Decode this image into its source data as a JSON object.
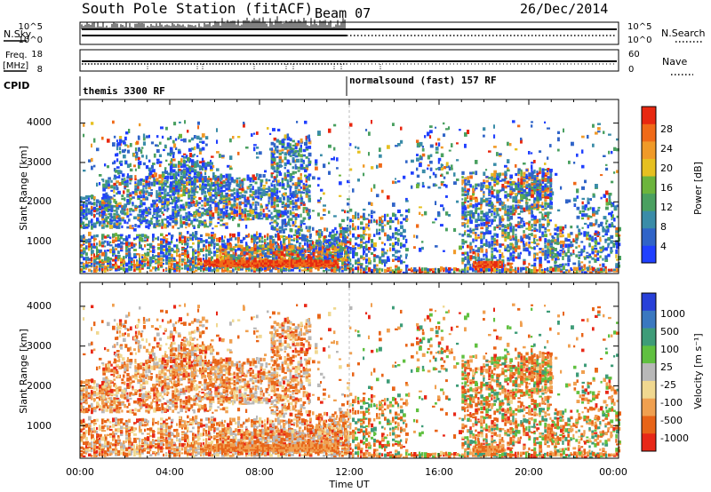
{
  "header": {
    "station": "South Pole Station (fitACF)",
    "beam": "Beam 07",
    "date": "26/Dec/2014"
  },
  "status": {
    "nsky_label": "N.Sky",
    "nsearch_label": "N.Search",
    "freq_label": "Freq.",
    "freq_unit": "[MHz]",
    "nave_label": "Nave",
    "cpid_label": "CPID",
    "nsky_ticks": [
      "10^5",
      "10^0"
    ],
    "nsearch_ticks": [
      "10^5",
      "10^0"
    ],
    "freq_ticks": [
      "18",
      "8"
    ],
    "nave_ticks": [
      "60",
      "0"
    ],
    "cpid_segments": [
      {
        "name": "themis 3300 RF",
        "start_hour": 0,
        "end_hour": 12
      },
      {
        "name": "normalsound (fast) 157 RF",
        "start_hour": 12,
        "end_hour": 24
      }
    ]
  },
  "chart_data": [
    {
      "type": "heatmap",
      "name": "power",
      "ylabel": "Slant Range [km]",
      "xlim": [
        0,
        24
      ],
      "ylim": [
        180,
        4600
      ],
      "yticks": [
        "1000",
        "2000",
        "3000",
        "4000"
      ],
      "ytick_values": [
        1000,
        2000,
        3000,
        4000
      ],
      "colorbar": {
        "label": "Power [dB]",
        "range": [
          0,
          32
        ],
        "tick_labels": [
          "4",
          "8",
          "12",
          "16",
          "20",
          "24",
          "28"
        ],
        "colors": [
          "#2040ff",
          "#3064c8",
          "#3a8ca8",
          "#4aa060",
          "#6cb43c",
          "#e6c020",
          "#f09a28",
          "#f06a18",
          "#e82810"
        ]
      }
    },
    {
      "type": "heatmap",
      "name": "velocity",
      "ylabel": "Slant Range [km]",
      "xlim": [
        0,
        24
      ],
      "ylim": [
        180,
        4600
      ],
      "yticks": [
        "1000",
        "2000",
        "3000",
        "4000"
      ],
      "ytick_values": [
        1000,
        2000,
        3000,
        4000
      ],
      "colorbar": {
        "label": "Velocity [m s⁻¹]",
        "tick_labels": [
          "1000",
          "500",
          "100",
          "25",
          "-25",
          "-100",
          "-500",
          "-1000"
        ],
        "colors": [
          "#2840d8",
          "#3a78c0",
          "#3e9c78",
          "#60c040",
          "#b8b8b8",
          "#f0d890",
          "#f0a050",
          "#e86418",
          "#e82818"
        ]
      }
    }
  ],
  "xaxis": {
    "label": "Time UT",
    "ticks": [
      "00:00",
      "04:00",
      "08:00",
      "12:00",
      "16:00",
      "20:00",
      "00:00"
    ],
    "tick_hours": [
      0,
      4,
      8,
      12,
      16,
      20,
      24
    ]
  }
}
